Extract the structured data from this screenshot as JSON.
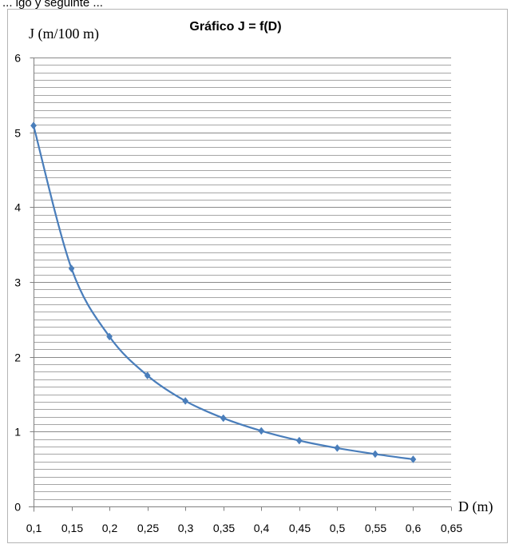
{
  "caption": "... igo y seguinte ...",
  "chart_data": {
    "type": "line",
    "title": "Gráfico J = f(D)",
    "xlabel": "D (m)",
    "ylabel": "J (m/100 m)",
    "xlim": [
      0.1,
      0.65
    ],
    "ylim": [
      0,
      6
    ],
    "x_ticks": [
      0.1,
      0.15,
      0.2,
      0.25,
      0.3,
      0.35,
      0.4,
      0.45,
      0.5,
      0.55,
      0.6,
      0.65
    ],
    "x_tick_labels": [
      "0,1",
      "0,15",
      "0,2",
      "0,25",
      "0,3",
      "0,35",
      "0,4",
      "0,45",
      "0,5",
      "0,55",
      "0,6",
      "0,65"
    ],
    "y_ticks": [
      0,
      1,
      2,
      3,
      4,
      5,
      6
    ],
    "y_tick_labels": [
      "0",
      "1",
      "2",
      "3",
      "4",
      "5",
      "6"
    ],
    "minor_grid_step": 0.1,
    "grid": true,
    "marker": "diamond",
    "smooth": true,
    "series": [
      {
        "color": "#4a7ebb",
        "x": [
          0.1,
          0.15,
          0.2,
          0.25,
          0.3,
          0.35,
          0.4,
          0.45,
          0.5,
          0.55,
          0.6
        ],
        "y": [
          5.09,
          3.18,
          2.27,
          1.75,
          1.41,
          1.18,
          1.01,
          0.88,
          0.78,
          0.7,
          0.63
        ]
      }
    ]
  }
}
